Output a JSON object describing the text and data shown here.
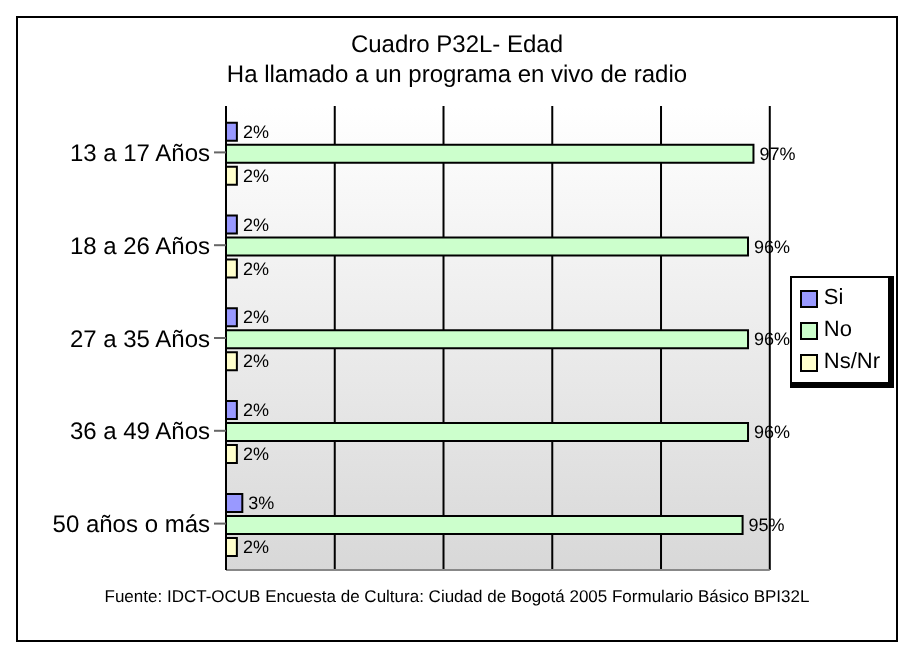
{
  "chart_data": {
    "type": "bar",
    "orientation": "horizontal",
    "title": "Cuadro P32L- Edad",
    "subtitle": "Ha llamado a un programa en vivo de radio",
    "categories": [
      "13 a 17 Años",
      "18 a 26 Años",
      "27 a 35 Años",
      "36 a 49 Años",
      "50 años o más"
    ],
    "series": [
      {
        "name": "Si",
        "color": "#9999ff",
        "values": [
          2,
          2,
          2,
          2,
          3
        ],
        "value_labels": [
          "2%",
          "2%",
          "2%",
          "2%",
          "3%"
        ]
      },
      {
        "name": "No",
        "color": "#ccffcc",
        "values": [
          97,
          96,
          96,
          96,
          95
        ],
        "value_labels": [
          "97%",
          "96%",
          "96%",
          "96%",
          "95%"
        ]
      },
      {
        "name": "Ns/Nr",
        "color": "#ffffcc",
        "values": [
          2,
          2,
          2,
          2,
          2
        ],
        "value_labels": [
          "2%",
          "2%",
          "2%",
          "2%",
          "2%"
        ]
      }
    ],
    "xlim": [
      0,
      100
    ],
    "grid": "x",
    "legend": "right",
    "tick_labels": "y",
    "annotations": [
      "Fuente: IDCT-OCUB Encuesta de Cultura: Ciudad de Bogotá 2005 Formulario Básico BPI32L"
    ]
  }
}
